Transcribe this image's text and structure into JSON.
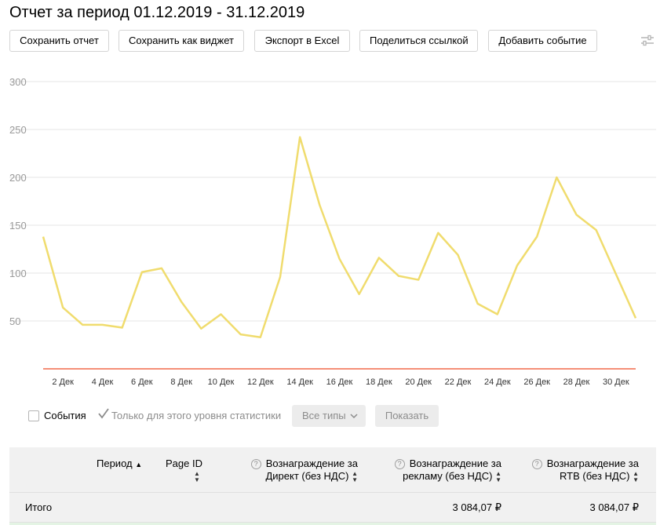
{
  "title": "Отчет за период 01.12.2019 - 31.12.2019",
  "toolbar": {
    "save_report": "Сохранить отчет",
    "save_widget": "Сохранить как виджет",
    "export_excel": "Экспорт в Excel",
    "share_link": "Поделиться ссылкой",
    "add_event": "Добавить событие",
    "settings_icon": "sliders-icon"
  },
  "chart_data": {
    "type": "line",
    "x": [
      1,
      2,
      3,
      4,
      5,
      6,
      7,
      8,
      9,
      10,
      11,
      12,
      13,
      14,
      15,
      16,
      17,
      18,
      19,
      20,
      21,
      22,
      23,
      24,
      25,
      26,
      27,
      28,
      29,
      30,
      31
    ],
    "x_tick_labels": [
      "2 Дек",
      "4 Дек",
      "6 Дек",
      "8 Дек",
      "10 Дек",
      "12 Дек",
      "14 Дек",
      "16 Дек",
      "18 Дек",
      "20 Дек",
      "22 Дек",
      "24 Дек",
      "26 Дек",
      "28 Дек",
      "30 Дек"
    ],
    "x_tick_values": [
      2,
      4,
      6,
      8,
      10,
      12,
      14,
      16,
      18,
      20,
      22,
      24,
      26,
      28,
      30
    ],
    "y_ticks": [
      50,
      100,
      150,
      200,
      250,
      300
    ],
    "ylim": [
      0,
      300
    ],
    "grid": true,
    "series": [
      {
        "color": "#f0dc6e",
        "values": [
          138,
          64,
          46,
          46,
          43,
          101,
          105,
          70,
          42,
          57,
          36,
          33,
          96,
          242,
          171,
          115,
          78,
          116,
          97,
          93,
          142,
          119,
          68,
          57,
          108,
          138,
          200,
          161,
          145,
          99,
          53
        ]
      },
      {
        "color": "#f26a4b",
        "values": [
          0,
          0,
          0,
          0,
          0,
          0,
          0,
          0,
          0,
          0,
          0,
          0,
          0,
          0,
          0,
          0,
          0,
          0,
          0,
          0,
          0,
          0,
          0,
          0,
          0,
          0,
          0,
          0,
          0,
          0,
          0
        ]
      }
    ]
  },
  "filters": {
    "events_label": "События",
    "events_checked": false,
    "level_only_label": "Только для этого уровня статистики",
    "level_only_checked": true,
    "types_label": "Все типы",
    "show_label": "Показать"
  },
  "table": {
    "columns": {
      "period": "Период",
      "page_id": "Page ID",
      "direct_1": "Вознаграждение за",
      "direct_2": "Директ (без НДС)",
      "ads_1": "Вознаграждение за",
      "ads_2": "рекламу (без НДС)",
      "rtb_1": "Вознаграждение за",
      "rtb_2": "RTB (без НДС)"
    },
    "total": {
      "label": "Итого",
      "ads": "3 084,07 ₽",
      "rtb": "3 084,07 ₽"
    }
  }
}
